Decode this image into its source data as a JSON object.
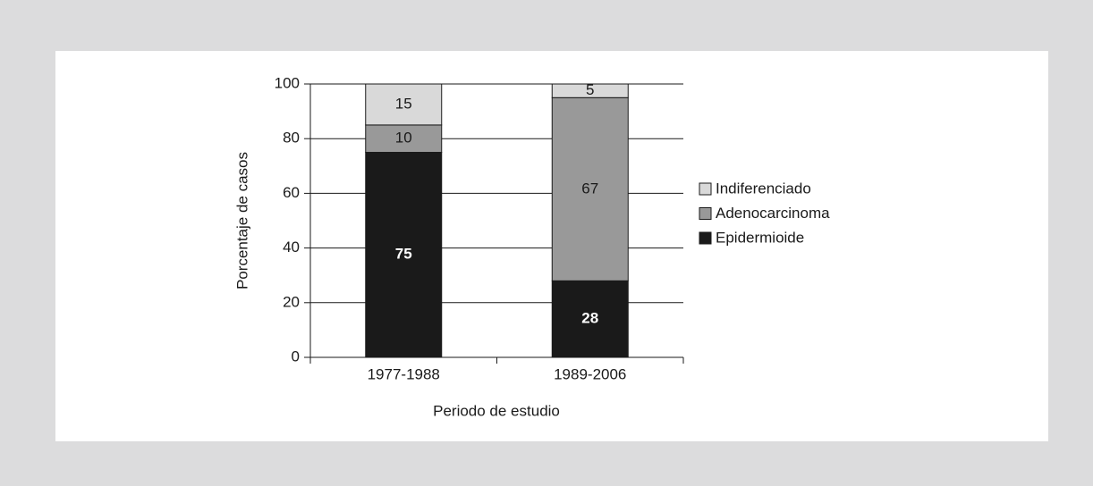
{
  "chart_data": {
    "type": "stacked_bar",
    "ylabel": "Porcentaje de casos",
    "xlabel": "Periodo de estudio",
    "categories": [
      "1977-1988",
      "1989-2006"
    ],
    "series": [
      {
        "name": "Epidermioide",
        "color": "#1a1a1a",
        "values": [
          75,
          28
        ]
      },
      {
        "name": "Adenocarcinoma",
        "color": "#999999",
        "values": [
          10,
          67
        ]
      },
      {
        "name": "Indiferenciado",
        "color": "#d9d9d9",
        "values": [
          15,
          5
        ]
      }
    ],
    "ylim": [
      0,
      100
    ],
    "yticks": [
      0,
      20,
      40,
      60,
      80,
      100
    ],
    "grid": true,
    "legend": "right"
  }
}
